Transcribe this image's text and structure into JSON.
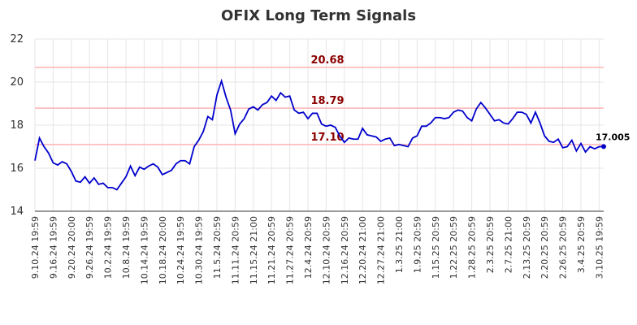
{
  "chart_data": {
    "type": "line",
    "title": "OFIX Long Term Signals",
    "categories": [
      "9.10.24 19:59",
      null,
      null,
      null,
      "9.16.24 19:59",
      null,
      null,
      null,
      "9.20.24 20:00",
      null,
      null,
      null,
      "9.26.24 19:59",
      null,
      null,
      null,
      "10.2.24 19:59",
      null,
      null,
      null,
      "10.8.24 19:59",
      null,
      null,
      null,
      "10.14.24 19:59",
      null,
      null,
      null,
      "10.18.24 20:00",
      null,
      null,
      null,
      "10.24.24 19:59",
      null,
      null,
      null,
      "10.30.24 19:59",
      null,
      null,
      null,
      "11.5.24 20:59",
      null,
      null,
      null,
      "11.11.24 20:59",
      null,
      null,
      null,
      "11.15.24 21:00",
      null,
      null,
      null,
      "11.21.24 20:59",
      null,
      null,
      null,
      "11.27.24 20:59",
      null,
      null,
      null,
      "12.4.24 20:59",
      null,
      null,
      null,
      "12.10.24 20:59",
      null,
      null,
      null,
      "12.16.24 20:59",
      null,
      null,
      null,
      "12.20.24 21:00",
      null,
      null,
      null,
      "12.27.24 21:00",
      null,
      null,
      null,
      "1.3.25 21:00",
      null,
      null,
      null,
      "1.9.25 20:59",
      null,
      null,
      null,
      "1.15.25 20:59",
      null,
      null,
      null,
      "1.22.25 20:59",
      null,
      null,
      null,
      "1.28.25 20:59",
      null,
      null,
      null,
      "2.3.25 20:59",
      null,
      null,
      null,
      "2.7.25 21:00",
      null,
      null,
      null,
      "2.13.25 20:59",
      null,
      null,
      null,
      "2.20.25 20:59",
      null,
      null,
      null,
      "2.26.25 20:59",
      null,
      null,
      null,
      "3.4.25 20:59",
      null,
      null,
      null,
      "3.10.25 19:59",
      null
    ],
    "series": [
      {
        "name": "OFIX",
        "color": "#0000cc",
        "values": [
          16.35,
          17.4,
          17.0,
          16.7,
          16.25,
          16.15,
          16.3,
          16.2,
          15.85,
          15.4,
          15.35,
          15.6,
          15.3,
          15.55,
          15.25,
          15.3,
          15.1,
          15.1,
          15.0,
          15.3,
          15.6,
          16.1,
          15.65,
          16.05,
          15.95,
          16.1,
          16.2,
          16.05,
          15.7,
          15.8,
          15.9,
          16.2,
          16.35,
          16.35,
          16.2,
          17.0,
          17.3,
          17.7,
          18.4,
          18.25,
          19.4,
          20.05,
          19.3,
          18.7,
          17.6,
          18.05,
          18.3,
          18.75,
          18.85,
          18.7,
          18.95,
          19.05,
          19.35,
          19.15,
          19.5,
          19.3,
          19.35,
          18.7,
          18.55,
          18.6,
          18.3,
          18.55,
          18.55,
          18.05,
          17.95,
          18.0,
          17.9,
          17.5,
          17.2,
          17.4,
          17.35,
          17.35,
          17.85,
          17.55,
          17.5,
          17.45,
          17.25,
          17.35,
          17.4,
          17.05,
          17.1,
          17.05,
          17.0,
          17.4,
          17.5,
          17.95,
          17.95,
          18.1,
          18.35,
          18.35,
          18.3,
          18.35,
          18.6,
          18.7,
          18.65,
          18.35,
          18.2,
          18.75,
          19.05,
          18.8,
          18.5,
          18.2,
          18.25,
          18.1,
          18.05,
          18.3,
          18.6,
          18.6,
          18.5,
          18.1,
          18.6,
          18.1,
          17.5,
          17.25,
          17.2,
          17.35,
          16.95,
          17.0,
          17.3,
          16.8,
          17.15,
          16.75,
          17.0,
          16.9,
          17.0,
          17.005
        ]
      }
    ],
    "hlines": [
      {
        "value": 20.68,
        "label": "20.68"
      },
      {
        "value": 18.79,
        "label": "18.79"
      },
      {
        "value": 17.1,
        "label": "17.10"
      }
    ],
    "hline_color": "#ffb3b3",
    "hline_label_color": "#8b0000",
    "ylim": [
      14,
      22
    ],
    "yticks": [
      14,
      16,
      18,
      20,
      22
    ],
    "grid": true
  }
}
